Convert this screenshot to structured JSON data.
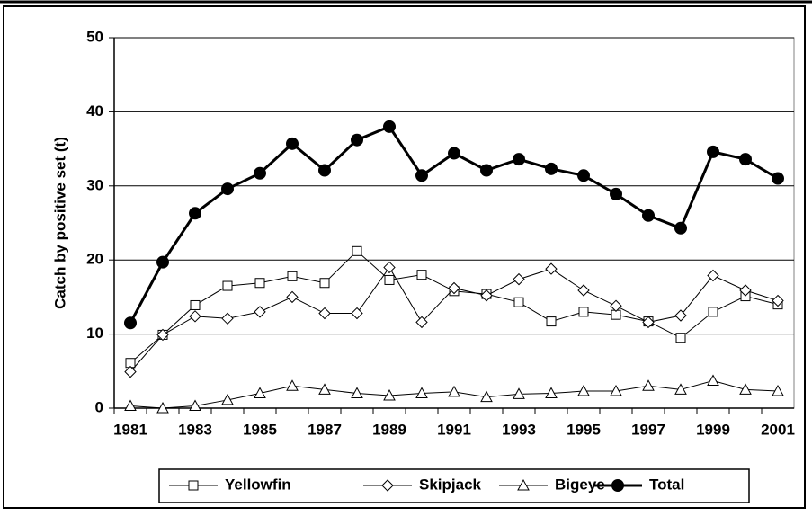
{
  "chart_data": {
    "type": "line",
    "y_label": "Catch by positive set (t)",
    "categories": [
      "1981",
      null,
      "1983",
      null,
      "1985",
      null,
      "1987",
      null,
      "1989",
      null,
      "1991",
      null,
      "1993",
      null,
      "1995",
      null,
      "1997",
      null,
      "1999",
      null,
      "2001"
    ],
    "ylim": [
      0,
      50
    ],
    "yticks": [
      0,
      10,
      20,
      30,
      40,
      50
    ],
    "grid": true,
    "legend": "bottom",
    "series": [
      {
        "name": "Yellowfin",
        "color": "#000000",
        "marker": "square",
        "line_width": 1,
        "values": [
          6.1,
          9.9,
          13.9,
          16.5,
          16.9,
          17.8,
          16.9,
          21.2,
          17.3,
          18.0,
          15.8,
          15.4,
          14.3,
          11.7,
          13.0,
          12.6,
          11.7,
          9.5,
          13.0,
          15.1,
          14.0
        ]
      },
      {
        "name": "Skipjack",
        "color": "#000000",
        "marker": "diamond",
        "line_width": 1,
        "values": [
          4.9,
          9.9,
          12.4,
          12.1,
          13.0,
          15.0,
          12.8,
          12.8,
          19.0,
          11.6,
          16.2,
          15.2,
          17.4,
          18.8,
          15.9,
          13.8,
          11.6,
          12.5,
          17.9,
          15.9,
          14.5
        ]
      },
      {
        "name": "Bigeye",
        "color": "#000000",
        "marker": "triangle",
        "line_width": 1,
        "values": [
          0.3,
          0.0,
          0.3,
          1.1,
          2.0,
          3.0,
          2.5,
          2.0,
          1.7,
          2.0,
          2.2,
          1.5,
          1.9,
          2.0,
          2.3,
          2.3,
          3.0,
          2.5,
          3.7,
          2.5,
          2.3
        ]
      },
      {
        "name": "Total",
        "color": "#000000",
        "marker": "circle",
        "line_width": 3,
        "values": [
          11.5,
          19.7,
          26.3,
          29.6,
          31.7,
          35.7,
          32.1,
          36.2,
          38.0,
          31.4,
          34.4,
          32.1,
          33.6,
          32.3,
          31.4,
          28.9,
          26.0,
          24.3,
          34.6,
          33.6,
          31.0
        ]
      }
    ]
  }
}
